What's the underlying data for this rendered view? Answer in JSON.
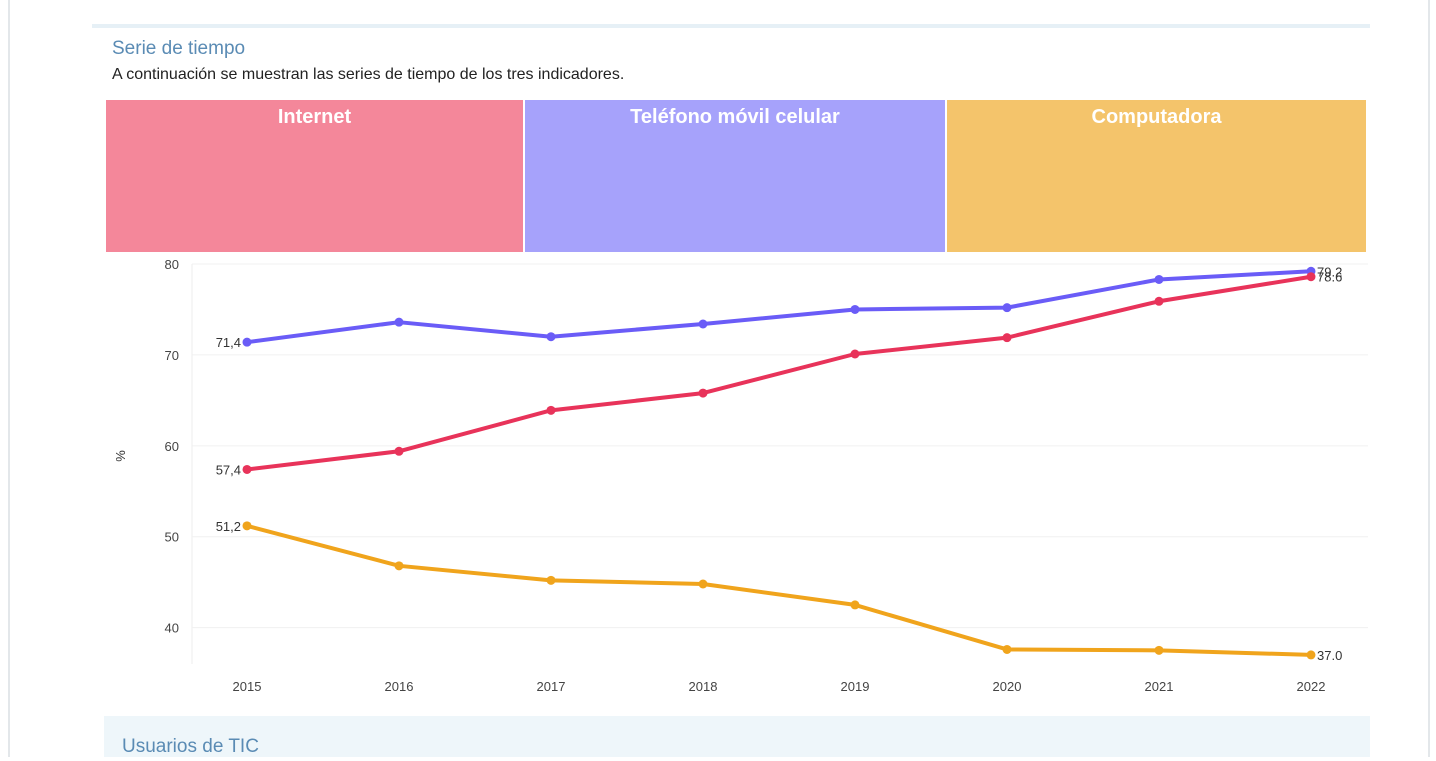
{
  "section": {
    "title": "Serie de tiempo",
    "description": "A continuación se muestran las series de tiempo de los tres indicadores."
  },
  "tabs": [
    {
      "label": "Internet",
      "color": "#f4879a"
    },
    {
      "label": "Teléfono móvil celular",
      "color": "#a6a2fb"
    },
    {
      "label": "Computadora",
      "color": "#f4c46b"
    }
  ],
  "chart_data": {
    "type": "line",
    "x": [
      "2015",
      "2016",
      "2017",
      "2018",
      "2019",
      "2020",
      "2021",
      "2022"
    ],
    "ylabel": "%",
    "ylim": [
      36,
      80
    ],
    "yticks": [
      "80",
      "70",
      "60",
      "50",
      "40"
    ],
    "grid": true,
    "series": [
      {
        "color": "#6a5cf7",
        "values": [
          71.4,
          73.6,
          72.0,
          73.4,
          75.0,
          75.2,
          78.3,
          79.2
        ],
        "start_label": "71,4",
        "end_label": "79.2"
      },
      {
        "color": "#e8335a",
        "values": [
          57.4,
          59.4,
          63.9,
          65.8,
          70.1,
          71.9,
          75.9,
          78.6
        ],
        "start_label": "57,4",
        "end_label": "78.6"
      },
      {
        "color": "#f0a41c",
        "values": [
          51.2,
          46.8,
          45.2,
          44.8,
          42.5,
          37.6,
          37.5,
          37.0
        ],
        "start_label": "51,2",
        "end_label": "37.0"
      }
    ]
  },
  "footer": {
    "title": "Usuarios de TIC"
  }
}
